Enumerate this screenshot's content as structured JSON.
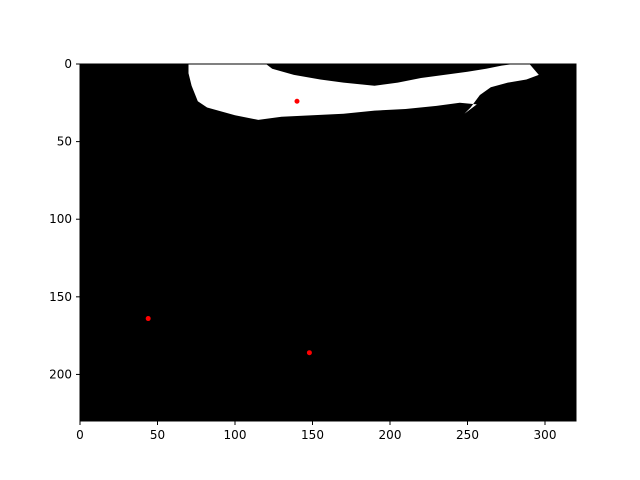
{
  "chart_data": {
    "type": "scatter",
    "image_background": "binary mask image",
    "background_color": "#000000",
    "foreground_color": "#ffffff",
    "marker_color": "#ff0000",
    "x_axis": {
      "range": [
        0,
        320
      ],
      "ticks": [
        "0",
        "50",
        "100",
        "150",
        "200",
        "250",
        "300"
      ],
      "tick_values": [
        0,
        50,
        100,
        150,
        200,
        250,
        300
      ]
    },
    "y_axis": {
      "range": [
        0,
        230
      ],
      "inverted": true,
      "ticks": [
        "0",
        "50",
        "100",
        "150",
        "200"
      ],
      "tick_values": [
        0,
        50,
        100,
        150,
        200
      ]
    },
    "points": [
      {
        "x": 140,
        "y": 24
      },
      {
        "x": 44,
        "y": 164
      },
      {
        "x": 148,
        "y": 186
      }
    ],
    "mask_blob_outline": [
      [
        70,
        0
      ],
      [
        74,
        0
      ],
      [
        120,
        0
      ],
      [
        124,
        3
      ],
      [
        138,
        7
      ],
      [
        155,
        10
      ],
      [
        170,
        12
      ],
      [
        190,
        14
      ],
      [
        205,
        12
      ],
      [
        220,
        9
      ],
      [
        235,
        7
      ],
      [
        250,
        5
      ],
      [
        262,
        3
      ],
      [
        272,
        1
      ],
      [
        280,
        0
      ],
      [
        290,
        0
      ],
      [
        296,
        7
      ],
      [
        288,
        10
      ],
      [
        276,
        12
      ],
      [
        265,
        15
      ],
      [
        258,
        20
      ],
      [
        252,
        28
      ],
      [
        248,
        32
      ],
      [
        256,
        26
      ],
      [
        245,
        25
      ],
      [
        230,
        27
      ],
      [
        210,
        29
      ],
      [
        190,
        30
      ],
      [
        170,
        32
      ],
      [
        150,
        33
      ],
      [
        130,
        34
      ],
      [
        115,
        36
      ],
      [
        100,
        33
      ],
      [
        82,
        28
      ],
      [
        76,
        24
      ],
      [
        72,
        14
      ],
      [
        70,
        6
      ]
    ],
    "title": "",
    "xlabel": "",
    "ylabel": "",
    "grid": false,
    "legend": "none"
  }
}
